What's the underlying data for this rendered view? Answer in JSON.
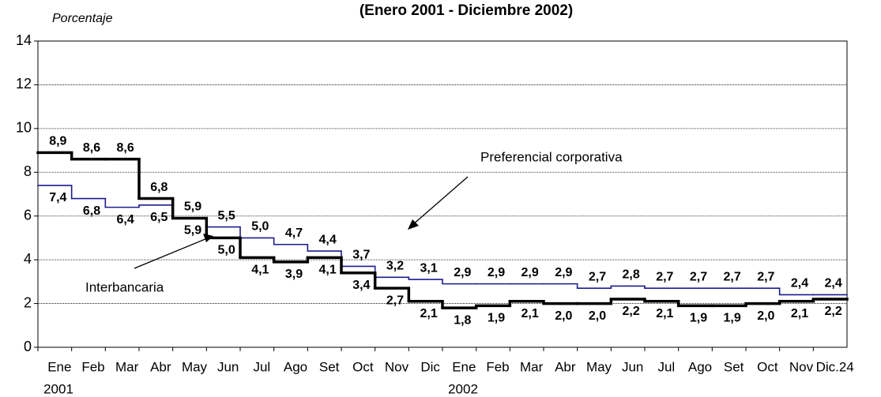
{
  "chart_data": {
    "type": "step",
    "title": "(Enero 2001 - Diciembre 2002)",
    "y_label": "Porcentaje",
    "categories": [
      "Ene",
      "Feb",
      "Mar",
      "Abr",
      "May",
      "Jun",
      "Jul",
      "Ago",
      "Set",
      "Oct",
      "Nov",
      "Dic",
      "Ene",
      "Feb",
      "Mar",
      "Abr",
      "May",
      "Jun",
      "Jul",
      "Ago",
      "Set",
      "Oct",
      "Nov",
      "Dic.24"
    ],
    "year_labels": [
      "2001",
      "2002"
    ],
    "annotations": [
      "Preferencial corporativa",
      "Interbancaria"
    ],
    "series": [
      {
        "name": "Interbancaria",
        "color": "#000000",
        "width": 3.5,
        "values": [
          8.9,
          8.6,
          8.6,
          6.8,
          5.9,
          5.0,
          4.1,
          3.9,
          4.1,
          3.4,
          2.7,
          2.1,
          1.8,
          1.9,
          2.1,
          2.0,
          2.0,
          2.2,
          2.1,
          1.9,
          1.9,
          2.0,
          2.1,
          2.2
        ],
        "value_labels": [
          "8,9",
          "8,6",
          "8,6",
          "6,8",
          "5,9",
          "5,0",
          "4,1",
          "3,9",
          "4,1",
          "3,4",
          "2,7",
          "2,1",
          "1,8",
          "1,9",
          "2,1",
          "2,0",
          "2,0",
          "2,2",
          "2,1",
          "1,9",
          "1,9",
          "2,0",
          "2,1",
          "2,2"
        ]
      },
      {
        "name": "Preferencial corporativa",
        "color": "#1c1c8c",
        "width": 1.6,
        "values": [
          7.4,
          6.8,
          6.4,
          6.5,
          5.9,
          5.5,
          5.0,
          4.7,
          4.4,
          3.7,
          3.2,
          3.1,
          2.9,
          2.9,
          2.9,
          2.9,
          2.7,
          2.8,
          2.7,
          2.7,
          2.7,
          2.7,
          2.4,
          2.4
        ],
        "value_labels": [
          "7,4",
          "6,8",
          "6,4",
          "6,5",
          "5,9",
          "5,5",
          "5,0",
          "4,7",
          "4,4",
          "3,7",
          "3,2",
          "3,1",
          "2,9",
          "2,9",
          "2,9",
          "2,9",
          "2,7",
          "2,8",
          "2,7",
          "2,7",
          "2,7",
          "2,7",
          "2,4",
          "2,4"
        ]
      }
    ],
    "ylim": [
      0,
      14
    ],
    "yticks": [
      0,
      2,
      4,
      6,
      8,
      10,
      12,
      14
    ],
    "grid": true
  }
}
